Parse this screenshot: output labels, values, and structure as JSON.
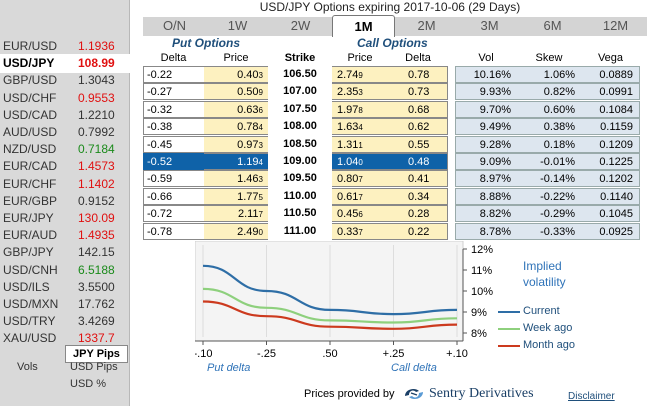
{
  "title": "USD/JPY Options expiring 2017-10-06 (29 Days)",
  "pairs": [
    {
      "name": "EUR/USD",
      "value": "1.1936",
      "color": "#e01010"
    },
    {
      "name": "USD/JPY",
      "value": "108.99",
      "color": "#e01010",
      "active": true
    },
    {
      "name": "GBP/USD",
      "value": "1.3043",
      "color": "#333333"
    },
    {
      "name": "USD/CHF",
      "value": "0.9553",
      "color": "#e01010"
    },
    {
      "name": "USD/CAD",
      "value": "1.2210",
      "color": "#333333"
    },
    {
      "name": "AUD/USD",
      "value": "0.7992",
      "color": "#333333"
    },
    {
      "name": "NZD/USD",
      "value": "0.7184",
      "color": "#1a8a1a"
    },
    {
      "name": "EUR/CAD",
      "value": "1.4573",
      "color": "#e01010"
    },
    {
      "name": "EUR/CHF",
      "value": "1.1402",
      "color": "#e01010"
    },
    {
      "name": "EUR/GBP",
      "value": "0.9152",
      "color": "#333333"
    },
    {
      "name": "EUR/JPY",
      "value": "130.09",
      "color": "#e01010"
    },
    {
      "name": "EUR/AUD",
      "value": "1.4935",
      "color": "#e01010"
    },
    {
      "name": "GBP/JPY",
      "value": "142.15",
      "color": "#333333"
    },
    {
      "name": "USD/CNH",
      "value": "6.5188",
      "color": "#1a8a1a"
    },
    {
      "name": "USD/ILS",
      "value": "3.5500",
      "color": "#333333"
    },
    {
      "name": "USD/MXN",
      "value": "17.762",
      "color": "#333333"
    },
    {
      "name": "USD/TRY",
      "value": "3.4269",
      "color": "#333333"
    },
    {
      "name": "XAU/USD",
      "value": "1337.7",
      "color": "#e01010"
    }
  ],
  "units": {
    "selected": "JPY Pips",
    "vols_label": "Vols",
    "options": [
      "USD Pips",
      "USD %"
    ]
  },
  "tabs": [
    "O/N",
    "1W",
    "2W",
    "1M",
    "2M",
    "3M",
    "6M",
    "12M"
  ],
  "active_tab": "1M",
  "groups": {
    "put": "Put Options",
    "call": "Call Options"
  },
  "columns": {
    "put_delta": "Delta",
    "put_price": "Price",
    "strike": "Strike",
    "call_price": "Price",
    "call_delta": "Delta",
    "vol": "Vol",
    "skew": "Skew",
    "vega": "Vega"
  },
  "rows": [
    {
      "put_delta": "-0.22",
      "put_price": "0.40",
      "put_price_sub": "3",
      "strike": "106.50",
      "call_price": "2.74",
      "call_price_sub": "9",
      "call_delta": "0.78",
      "vol": "10.16%",
      "skew": "1.06%",
      "vega": "0.0889"
    },
    {
      "put_delta": "-0.27",
      "put_price": "0.50",
      "put_price_sub": "9",
      "strike": "107.00",
      "call_price": "2.35",
      "call_price_sub": "3",
      "call_delta": "0.73",
      "vol": "9.93%",
      "skew": "0.82%",
      "vega": "0.0991"
    },
    {
      "put_delta": "-0.32",
      "put_price": "0.63",
      "put_price_sub": "6",
      "strike": "107.50",
      "call_price": "1.97",
      "call_price_sub": "8",
      "call_delta": "0.68",
      "vol": "9.70%",
      "skew": "0.60%",
      "vega": "0.1084"
    },
    {
      "put_delta": "-0.38",
      "put_price": "0.78",
      "put_price_sub": "4",
      "strike": "108.00",
      "call_price": "1.63",
      "call_price_sub": "4",
      "call_delta": "0.62",
      "vol": "9.49%",
      "skew": "0.38%",
      "vega": "0.1159"
    },
    {
      "put_delta": "-0.45",
      "put_price": "0.97",
      "put_price_sub": "3",
      "strike": "108.50",
      "call_price": "1.31",
      "call_price_sub": "1",
      "call_delta": "0.55",
      "vol": "9.28%",
      "skew": "0.18%",
      "vega": "0.1209"
    },
    {
      "put_delta": "-0.52",
      "put_price": "1.19",
      "put_price_sub": "4",
      "strike": "109.00",
      "call_price": "1.04",
      "call_price_sub": "0",
      "call_delta": "0.48",
      "vol": "9.09%",
      "skew": "-0.01%",
      "vega": "0.1225",
      "atm": true
    },
    {
      "put_delta": "-0.59",
      "put_price": "1.46",
      "put_price_sub": "3",
      "strike": "109.50",
      "call_price": "0.80",
      "call_price_sub": "7",
      "call_delta": "0.41",
      "vol": "8.97%",
      "skew": "-0.14%",
      "vega": "0.1202"
    },
    {
      "put_delta": "-0.66",
      "put_price": "1.77",
      "put_price_sub": "5",
      "strike": "110.00",
      "call_price": "0.61",
      "call_price_sub": "7",
      "call_delta": "0.34",
      "vol": "8.88%",
      "skew": "-0.22%",
      "vega": "0.1140"
    },
    {
      "put_delta": "-0.72",
      "put_price": "2.11",
      "put_price_sub": "7",
      "strike": "110.50",
      "call_price": "0.45",
      "call_price_sub": "6",
      "call_delta": "0.28",
      "vol": "8.82%",
      "skew": "-0.29%",
      "vega": "0.1045"
    },
    {
      "put_delta": "-0.78",
      "put_price": "2.49",
      "put_price_sub": "0",
      "strike": "111.00",
      "call_price": "0.33",
      "call_price_sub": "7",
      "call_delta": "0.22",
      "vol": "8.78%",
      "skew": "-0.33%",
      "vega": "0.0925"
    }
  ],
  "chart_data": {
    "type": "line",
    "x": [
      -0.1,
      -0.25,
      0.5,
      0.25,
      0.1
    ],
    "x_tick_labels": [
      "-.10",
      "-.25",
      ".50",
      "+.25",
      "+.10"
    ],
    "xlabel_left": "Put delta",
    "xlabel_right": "Call delta",
    "ylim": [
      8,
      12
    ],
    "y_ticks": [
      12,
      11,
      10,
      9,
      8
    ],
    "y_tick_labels": [
      "12%",
      "11%",
      "10%",
      "9%",
      "8%"
    ],
    "legend_title": "Implied volatility",
    "series": [
      {
        "name": "Current",
        "color": "#2e6ea6",
        "values": [
          11.2,
          10.0,
          9.1,
          8.9,
          9.1
        ]
      },
      {
        "name": "Week ago",
        "color": "#8ed07d",
        "values": [
          10.1,
          9.2,
          8.6,
          8.5,
          8.7
        ]
      },
      {
        "name": "Month ago",
        "color": "#cc3a1e",
        "values": [
          9.5,
          8.8,
          8.3,
          8.2,
          8.4
        ]
      }
    ]
  },
  "footer": {
    "prices_by": "Prices provided by",
    "provider": "Sentry Derivatives",
    "disclaimer": "Disclaimer"
  }
}
